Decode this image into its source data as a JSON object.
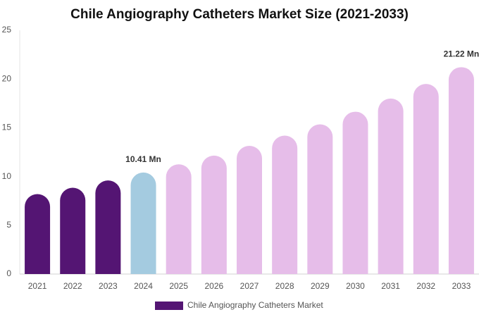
{
  "chart_data": {
    "type": "bar",
    "title": "Chile Angiography Catheters Market Size (2021-2033)",
    "categories": [
      "2021",
      "2022",
      "2023",
      "2024",
      "2025",
      "2026",
      "2027",
      "2028",
      "2029",
      "2030",
      "2031",
      "2032",
      "2033"
    ],
    "series": [
      {
        "name": "Chile Angiography Catheters Market",
        "color": "#541573",
        "values": [
          8.2,
          8.85,
          9.6,
          10.41,
          11.25,
          12.15,
          13.15,
          14.2,
          15.35,
          16.65,
          18.0,
          19.5,
          21.22
        ],
        "value_labels": [
          null,
          null,
          null,
          "10.41 Mn",
          null,
          null,
          null,
          null,
          null,
          null,
          null,
          null,
          "21.22 Mn"
        ],
        "bar_colors": [
          "#541573",
          "#541573",
          "#541573",
          "#a4cbe0",
          "#e6bde9",
          "#e6bde9",
          "#e6bde9",
          "#e6bde9",
          "#e6bde9",
          "#e6bde9",
          "#e6bde9",
          "#e6bde9",
          "#e6bde9"
        ]
      }
    ],
    "ylim": [
      0,
      25
    ],
    "yticks": [
      0,
      5,
      10,
      15,
      20,
      25
    ],
    "grid": false,
    "legend": "bottom"
  }
}
